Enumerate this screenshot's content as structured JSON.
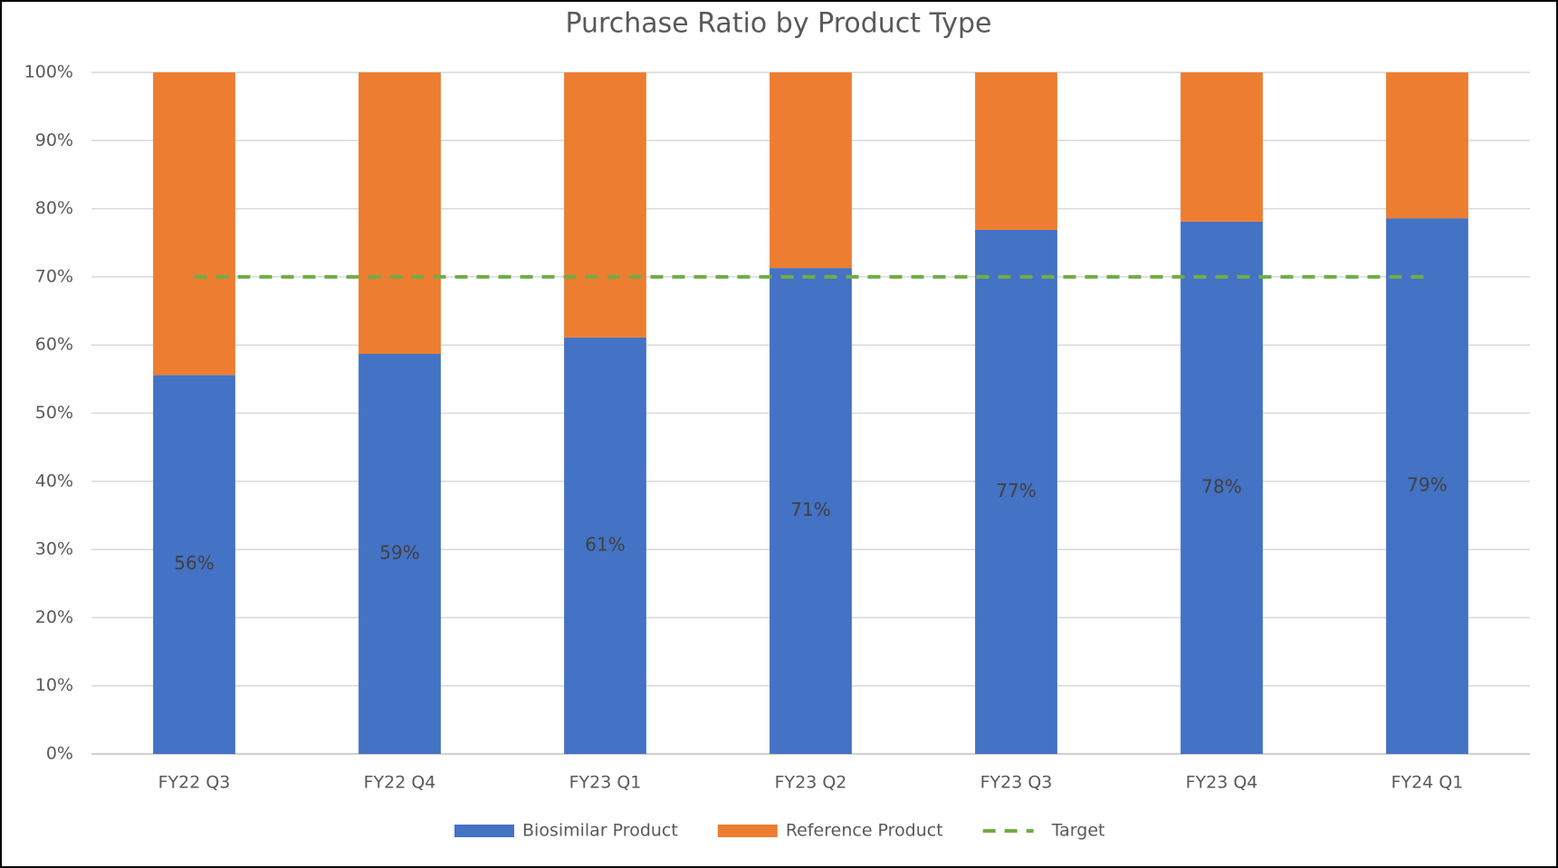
{
  "chart_data": {
    "type": "bar",
    "stacked": true,
    "title": "Purchase Ratio by Product Type",
    "categories": [
      "FY22 Q3",
      "FY22 Q4",
      "FY23 Q1",
      "FY23 Q2",
      "FY23 Q3",
      "FY23 Q4",
      "FY24 Q1"
    ],
    "series": [
      {
        "name": "Biosimilar Product",
        "color": "#4472c4",
        "values": [
          55.6,
          58.7,
          61.1,
          71.3,
          76.9,
          78.1,
          78.6
        ],
        "value_labels": [
          "56%",
          "59%",
          "61%",
          "71%",
          "77%",
          "78%",
          "79%"
        ]
      },
      {
        "name": "Reference Product",
        "color": "#ed7d31",
        "values": [
          44.4,
          41.3,
          38.9,
          28.7,
          23.1,
          21.9,
          21.4
        ]
      },
      {
        "name": "Target",
        "type": "line",
        "dashed": true,
        "color": "#70ad47",
        "values": [
          70,
          70,
          70,
          70,
          70,
          70,
          70
        ]
      }
    ],
    "ylim": [
      0,
      100
    ],
    "yticks": [
      {
        "value": 0,
        "label": "0%"
      },
      {
        "value": 10,
        "label": "10%"
      },
      {
        "value": 20,
        "label": "20%"
      },
      {
        "value": 30,
        "label": "30%"
      },
      {
        "value": 40,
        "label": "40%"
      },
      {
        "value": 50,
        "label": "50%"
      },
      {
        "value": 60,
        "label": "60%"
      },
      {
        "value": 70,
        "label": "70%"
      },
      {
        "value": 80,
        "label": "80%"
      },
      {
        "value": 90,
        "label": "90%"
      },
      {
        "value": 100,
        "label": "100%"
      }
    ],
    "grid": true,
    "legend": "bottom"
  }
}
